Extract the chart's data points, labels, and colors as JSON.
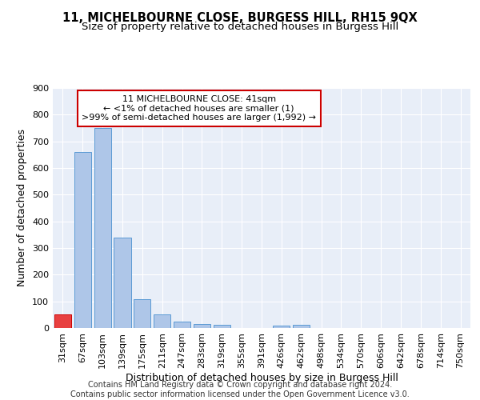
{
  "title": "11, MICHELBOURNE CLOSE, BURGESS HILL, RH15 9QX",
  "subtitle": "Size of property relative to detached houses in Burgess Hill",
  "xlabel": "Distribution of detached houses by size in Burgess Hill",
  "ylabel": "Number of detached properties",
  "footer_line1": "Contains HM Land Registry data © Crown copyright and database right 2024.",
  "footer_line2": "Contains public sector information licensed under the Open Government Licence v3.0.",
  "categories": [
    "31sqm",
    "67sqm",
    "103sqm",
    "139sqm",
    "175sqm",
    "211sqm",
    "247sqm",
    "283sqm",
    "319sqm",
    "355sqm",
    "391sqm",
    "426sqm",
    "462sqm",
    "498sqm",
    "534sqm",
    "570sqm",
    "606sqm",
    "642sqm",
    "678sqm",
    "714sqm",
    "750sqm"
  ],
  "values": [
    50,
    660,
    750,
    340,
    108,
    50,
    25,
    15,
    12,
    0,
    0,
    8,
    12,
    0,
    0,
    0,
    0,
    0,
    0,
    0,
    0
  ],
  "bar_color": "#aec6e8",
  "bar_edge_color": "#5b9bd5",
  "highlight_bar_index": 0,
  "highlight_bar_color": "#e84040",
  "highlight_bar_edge_color": "#cc0000",
  "annotation_text": "11 MICHELBOURNE CLOSE: 41sqm\n← <1% of detached houses are smaller (1)\n>99% of semi-detached houses are larger (1,992) →",
  "annotation_box_color": "#ffffff",
  "annotation_box_edge_color": "#cc0000",
  "ylim": [
    0,
    900
  ],
  "yticks": [
    0,
    100,
    200,
    300,
    400,
    500,
    600,
    700,
    800,
    900
  ],
  "background_color": "#e8eef8",
  "grid_color": "#ffffff",
  "title_fontsize": 10.5,
  "subtitle_fontsize": 9.5,
  "ylabel_fontsize": 9,
  "xlabel_fontsize": 9,
  "tick_fontsize": 8,
  "annotation_fontsize": 8,
  "footer_fontsize": 7
}
